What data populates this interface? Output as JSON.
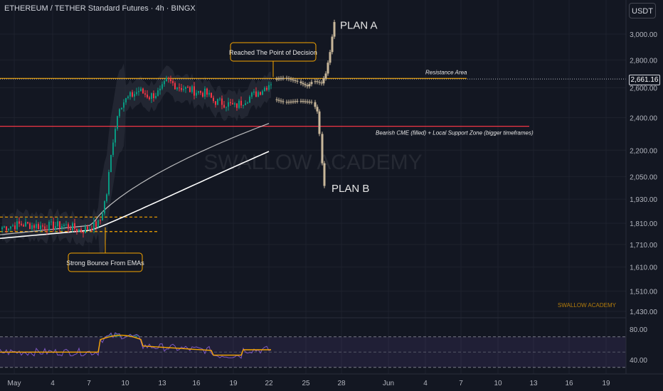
{
  "header": {
    "title": "ETHEREUM / TETHER Standard Futures · 4h · BINGX",
    "currency": "USDT"
  },
  "price_marker": "2,661.16",
  "colors": {
    "background": "#131722",
    "up": "#089981",
    "down": "#f23645",
    "resistance": "#f7a600",
    "support": "#f23645",
    "annotation": "#f7a600",
    "projection": "#c8b79a",
    "ema_fast": "#d9d9d9",
    "ema_slow": "#ffffff",
    "rsi_line": "#7e57c2",
    "rsi_ma": "#f7a600",
    "rsi_band": "#7e57c2"
  },
  "chart_data": {
    "type": "candlestick",
    "title": "ETHEREUM / TETHER Standard Futures · 4h · BINGX",
    "x_tick_labels": [
      "May",
      "4",
      "7",
      "10",
      "13",
      "16",
      "19",
      "22",
      "25",
      "28",
      "Jun",
      "4",
      "7",
      "10",
      "13",
      "16",
      "19"
    ],
    "y_tick_labels": [
      "3,000.00",
      "2,800.00",
      "2,600.00",
      "2,400.00",
      "2,200.00",
      "2,050.00",
      "1,930.00",
      "1,810.00",
      "1,710.00",
      "1,610.00",
      "1,510.00",
      "1,430.00"
    ],
    "y_scale": "log",
    "ylim": [
      1430,
      3000
    ],
    "last_price": 2661.16,
    "horizontal_levels": [
      {
        "label": "Resistance Area",
        "price": 2665
      },
      {
        "label": "Bearish CME (filled) + Local Support Zone (bigger timeframes)",
        "price": 2345
      },
      {
        "label": "",
        "price": 1840
      },
      {
        "label": "",
        "price": 1770
      }
    ],
    "annotations": [
      "Reached The Point of Decision",
      "Strong Bounce From EMAs"
    ],
    "scenarios": [
      {
        "label": "PLAN A",
        "target": 3100
      },
      {
        "label": "PLAN B",
        "target": 1990
      }
    ],
    "watermark": "SWALLOW ACADEMY",
    "corner_label": "SWALLOW ACADEMY",
    "rsi": {
      "y_tick_labels": [
        "80.00",
        "40.00"
      ],
      "ylim": [
        35,
        85
      ],
      "band": [
        30,
        70
      ]
    }
  }
}
